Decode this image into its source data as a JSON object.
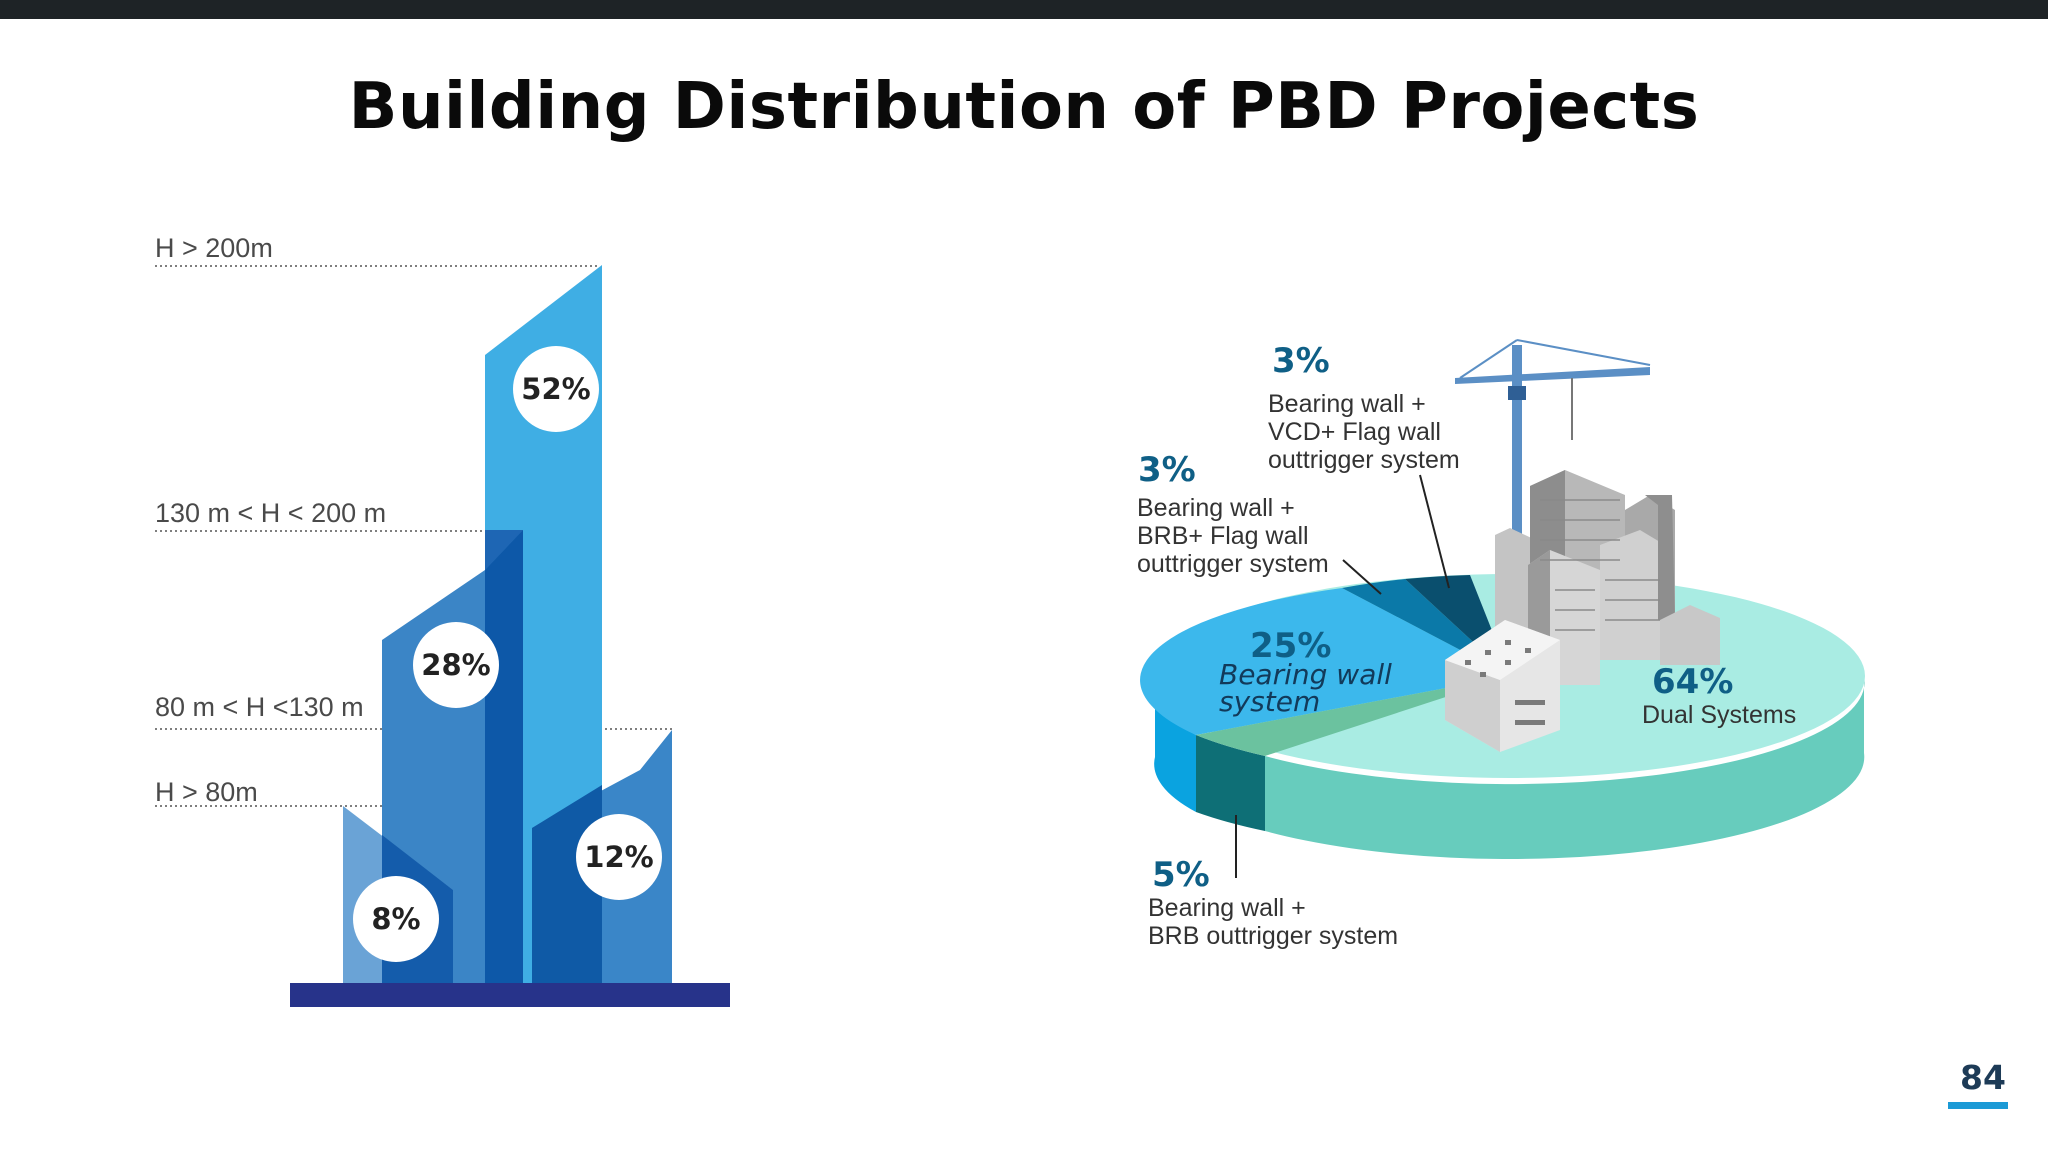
{
  "slide": {
    "title": "Building Distribution of PBD Projects",
    "page_number": "84"
  },
  "chart_data": [
    {
      "type": "bar",
      "categories": [
        "H > 80m",
        "80 m < H <130 m",
        "130 m < H < 200 m",
        "H > 200m"
      ],
      "values": [
        8,
        12,
        28,
        52
      ],
      "value_labels": [
        "8%",
        "12%",
        "28%",
        "52%"
      ],
      "height_labels": [
        "H > 200m",
        "130 m < H < 200 m",
        "80 m < H <130 m",
        "H > 80m"
      ],
      "unit": "%",
      "colors": [
        "#6aa3d6",
        "#3a86c8",
        "#3b85c6",
        "#3faee4"
      ]
    },
    {
      "type": "pie",
      "slices": [
        {
          "value": 64,
          "label": "64%",
          "desc_lines": [
            "Dual Systems"
          ],
          "color": "#7edcc9"
        },
        {
          "value": 25,
          "label": "25%",
          "desc_lines": [
            "Bearing wall",
            "system"
          ],
          "color": "#3cb8ec"
        },
        {
          "value": 5,
          "label": "5%",
          "desc_lines": [
            "Bearing wall +",
            "BRB outtrigger system"
          ],
          "color": "#0e6f76"
        },
        {
          "value": 3,
          "label": "3%",
          "desc_lines": [
            "Bearing wall +",
            "BRB+ Flag wall",
            "outtrigger system"
          ],
          "color": "#0b5c7e"
        },
        {
          "value": 3,
          "label": "3%",
          "desc_lines": [
            "Bearing wall +",
            "VCD+ Flag wall",
            "outtrigger system"
          ],
          "color": "#0a3f5c"
        }
      ]
    }
  ]
}
